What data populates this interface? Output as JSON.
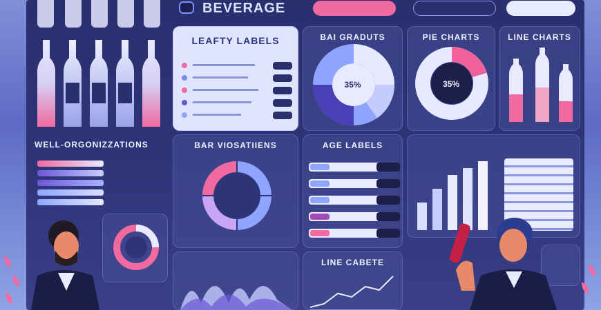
{
  "header": {
    "logo_icon": "circle-logo-icon",
    "title": "BEVERAGE"
  },
  "panels": {
    "leafy": {
      "title": "LEAFTY LABELS"
    },
    "bar_gradients": {
      "title": "BAI GRADUTS",
      "center_label": "35%"
    },
    "pie_charts": {
      "title": "PIE CHARTS",
      "center_label": "35%"
    },
    "line_charts": {
      "title": "LINE CHARTS"
    },
    "well_organized": {
      "title": "WELL-ORGONIZZATIONS"
    },
    "bar_visualizations": {
      "title": "BAR VIOSATIIENS"
    },
    "age_labels": {
      "title": "AGE LABELS"
    },
    "line_cabete": {
      "title": "LINE CABETE"
    }
  },
  "colors": {
    "accent_pink": "#f0609a",
    "accent_purple": "#6b56d6",
    "accent_blue": "#8ea4ff",
    "board": "#2a2f6e"
  }
}
